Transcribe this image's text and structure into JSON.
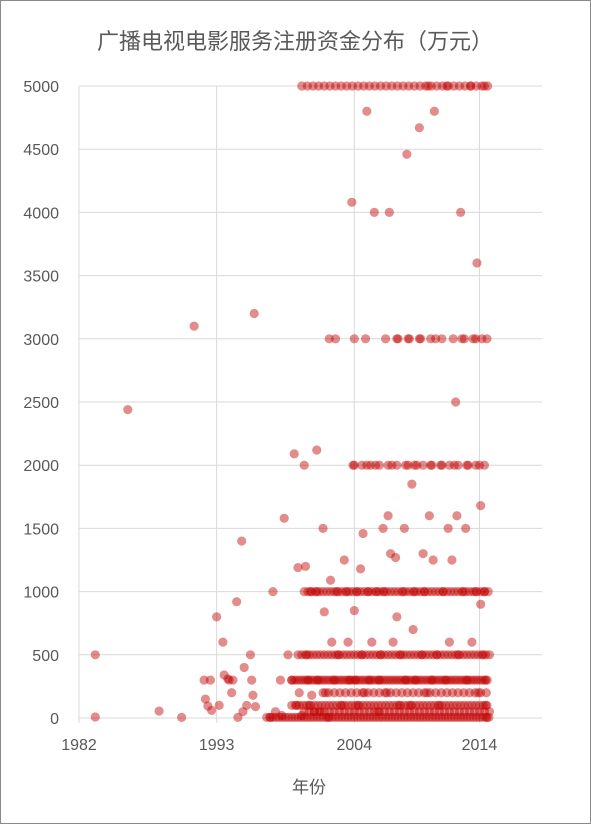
{
  "chart_data": {
    "type": "scatter",
    "title": "广播电视电影服务注册资金分布（万元）",
    "xlabel": "年份",
    "ylabel": "",
    "xlim": [
      1982,
      2019
    ],
    "ylim": [
      0,
      5000
    ],
    "xticks": [
      1982,
      1993,
      2004,
      2014
    ],
    "yticks": [
      0,
      500,
      1000,
      1500,
      2000,
      2500,
      3000,
      3500,
      4000,
      4500,
      5000
    ],
    "grid": true,
    "color": "#c00000",
    "series": [
      {
        "points": [
          [
            1983.3,
            500
          ],
          [
            1983.3,
            8
          ],
          [
            1985.9,
            2440
          ],
          [
            1988.4,
            55
          ],
          [
            1990.2,
            5
          ],
          [
            1991.2,
            3100
          ],
          [
            1992.0,
            300
          ],
          [
            1992.1,
            150
          ],
          [
            1992.3,
            95
          ],
          [
            1992.5,
            300
          ],
          [
            1992.6,
            60
          ],
          [
            1993.0,
            800
          ],
          [
            1993.2,
            100
          ],
          [
            1993.5,
            600
          ],
          [
            1993.6,
            340
          ],
          [
            1993.9,
            310
          ],
          [
            1994.0,
            300
          ],
          [
            1994.2,
            200
          ],
          [
            1994.3,
            300
          ],
          [
            1994.6,
            920
          ],
          [
            1994.7,
            5
          ],
          [
            1995.0,
            1400
          ],
          [
            1995.1,
            50
          ],
          [
            1995.2,
            400
          ],
          [
            1995.4,
            100
          ],
          [
            1995.7,
            500
          ],
          [
            1995.8,
            300
          ],
          [
            1995.9,
            180
          ],
          [
            1996.0,
            3200
          ],
          [
            1996.1,
            90
          ],
          [
            1997.3,
            5
          ],
          [
            1997.5,
            1000
          ],
          [
            1997.7,
            50
          ],
          [
            1998.1,
            300
          ],
          [
            1998.2,
            20
          ],
          [
            1998.4,
            1580
          ],
          [
            1998.7,
            500
          ],
          [
            1999.0,
            300
          ],
          [
            1999.2,
            2090
          ],
          [
            1999.4,
            100
          ],
          [
            1999.5,
            1190
          ],
          [
            1999.6,
            200
          ],
          [
            1999.8,
            20
          ],
          [
            2000.0,
            2000
          ],
          [
            2000.1,
            1200
          ],
          [
            2000.2,
            500
          ],
          [
            2000.3,
            300
          ],
          [
            2000.4,
            100
          ],
          [
            2000.5,
            1000
          ],
          [
            2000.6,
            180
          ],
          [
            2000.8,
            50
          ],
          [
            2001.0,
            2120
          ],
          [
            2001.0,
            1000
          ],
          [
            2001.1,
            300
          ],
          [
            2001.3,
            50
          ],
          [
            2001.5,
            1500
          ],
          [
            2001.6,
            840
          ],
          [
            2001.7,
            200
          ],
          [
            2001.9,
            5
          ],
          [
            2002.0,
            3000
          ],
          [
            2002.1,
            1090
          ],
          [
            2002.2,
            600
          ],
          [
            2002.4,
            300
          ],
          [
            2002.5,
            3000
          ],
          [
            2002.6,
            1000
          ],
          [
            2002.7,
            500
          ],
          [
            2003.0,
            100
          ],
          [
            2003.2,
            1250
          ],
          [
            2003.4,
            1000
          ],
          [
            2003.5,
            600
          ],
          [
            2003.6,
            300
          ],
          [
            2003.8,
            4080
          ],
          [
            2004.0,
            3000
          ],
          [
            2004.0,
            2000
          ],
          [
            2004.0,
            850
          ],
          [
            2004.1,
            300
          ],
          [
            2004.2,
            1000
          ],
          [
            2004.3,
            100
          ],
          [
            2004.5,
            1180
          ],
          [
            2004.6,
            500
          ],
          [
            2004.7,
            1460
          ],
          [
            2004.8,
            200
          ],
          [
            2004.9,
            3000
          ],
          [
            2005.0,
            2000
          ],
          [
            2005.0,
            4800
          ],
          [
            2005.1,
            1000
          ],
          [
            2005.2,
            300
          ],
          [
            2005.4,
            600
          ],
          [
            2005.6,
            4000
          ],
          [
            2005.7,
            2000
          ],
          [
            2005.8,
            1000
          ],
          [
            2005.9,
            50
          ],
          [
            2006.0,
            300
          ],
          [
            2006.1,
            500
          ],
          [
            2006.3,
            1500
          ],
          [
            2006.4,
            1000
          ],
          [
            2006.6,
            200
          ],
          [
            2006.7,
            1600
          ],
          [
            2006.8,
            4000
          ],
          [
            2006.9,
            1300
          ],
          [
            2007.0,
            2000
          ],
          [
            2007.1,
            600
          ],
          [
            2007.3,
            1270
          ],
          [
            2007.4,
            800
          ],
          [
            2007.5,
            3000
          ],
          [
            2007.6,
            100
          ],
          [
            2007.7,
            500
          ],
          [
            2007.9,
            1000
          ],
          [
            2008.0,
            1500
          ],
          [
            2008.1,
            300
          ],
          [
            2008.2,
            4460
          ],
          [
            2008.3,
            2000
          ],
          [
            2008.4,
            3000
          ],
          [
            2008.5,
            100
          ],
          [
            2008.6,
            1850
          ],
          [
            2008.7,
            700
          ],
          [
            2008.8,
            1000
          ],
          [
            2008.9,
            300
          ],
          [
            2009.0,
            2000
          ],
          [
            2009.2,
            4670
          ],
          [
            2009.3,
            3000
          ],
          [
            2009.4,
            500
          ],
          [
            2009.5,
            1300
          ],
          [
            2009.6,
            1000
          ],
          [
            2009.8,
            200
          ],
          [
            2009.9,
            5000
          ],
          [
            2010.0,
            1600
          ],
          [
            2010.1,
            2000
          ],
          [
            2010.2,
            300
          ],
          [
            2010.3,
            1250
          ],
          [
            2010.4,
            4800
          ],
          [
            2010.5,
            3000
          ],
          [
            2010.6,
            500
          ],
          [
            2010.8,
            100
          ],
          [
            2011.0,
            2000
          ],
          [
            2011.1,
            1000
          ],
          [
            2011.3,
            300
          ],
          [
            2011.4,
            5000
          ],
          [
            2011.5,
            1500
          ],
          [
            2011.6,
            600
          ],
          [
            2011.8,
            1250
          ],
          [
            2012.0,
            2000
          ],
          [
            2012.1,
            2500
          ],
          [
            2012.2,
            1600
          ],
          [
            2012.3,
            500
          ],
          [
            2012.5,
            4000
          ],
          [
            2012.6,
            3000
          ],
          [
            2012.7,
            1000
          ],
          [
            2012.9,
            1500
          ],
          [
            2013.0,
            300
          ],
          [
            2013.1,
            2000
          ],
          [
            2013.3,
            5000
          ],
          [
            2013.4,
            600
          ],
          [
            2013.5,
            3000
          ],
          [
            2013.7,
            1000
          ],
          [
            2013.8,
            3600
          ],
          [
            2013.9,
            200
          ],
          [
            2014.0,
            2000
          ],
          [
            2014.1,
            1680
          ],
          [
            2014.1,
            900
          ],
          [
            2014.2,
            3000
          ],
          [
            2014.3,
            500
          ],
          [
            2014.4,
            5000
          ],
          [
            2014.4,
            1000
          ],
          [
            2014.5,
            300
          ],
          [
            2014.5,
            100
          ],
          [
            2014.6,
            5
          ]
        ],
        "bands": [
          {
            "y": 5000,
            "x_from": 1999.8,
            "x_to": 2014.8,
            "step": 0.45
          },
          {
            "y": 3000,
            "x_from": 2006.5,
            "x_to": 2014.8,
            "step": 0.9
          },
          {
            "y": 2000,
            "x_from": 2003.9,
            "x_to": 2014.8,
            "step": 0.7
          },
          {
            "y": 1000,
            "x_from": 2000.0,
            "x_to": 2014.8,
            "step": 0.3
          },
          {
            "y": 500,
            "x_from": 1999.5,
            "x_to": 2014.8,
            "step": 0.3
          },
          {
            "y": 300,
            "x_from": 1999.0,
            "x_to": 2014.8,
            "step": 0.22
          },
          {
            "y": 200,
            "x_from": 2001.5,
            "x_to": 2014.8,
            "step": 0.45
          },
          {
            "y": 100,
            "x_from": 1999.0,
            "x_to": 2014.8,
            "step": 0.3
          },
          {
            "y": 50,
            "x_from": 2000.0,
            "x_to": 2014.8,
            "step": 0.4
          },
          {
            "y": 5,
            "x_from": 1997.0,
            "x_to": 2014.8,
            "step": 0.25
          }
        ]
      }
    ]
  }
}
